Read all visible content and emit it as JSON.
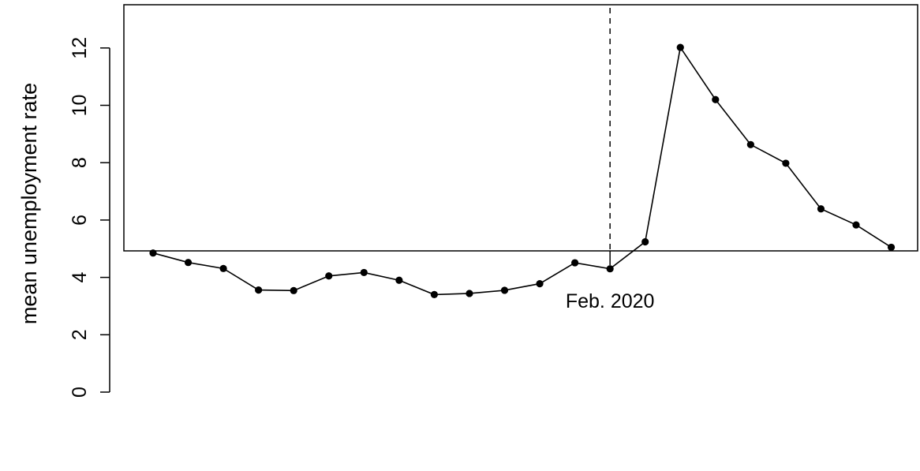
{
  "chart_data": {
    "type": "line",
    "title": "",
    "xlabel": "",
    "ylabel": "mean unemployment rate",
    "ylim": [
      -0.5,
      13.3
    ],
    "yticks": [
      0,
      2,
      4,
      6,
      8,
      10,
      12
    ],
    "x_ticks": [
      {
        "x": 13,
        "label": "Feb. 2020"
      }
    ],
    "reference_line": {
      "x": 13,
      "style": "dashed"
    },
    "grid": false,
    "legend": "none",
    "series": [
      {
        "x": [
          0,
          1,
          2,
          3,
          4,
          5,
          6,
          7,
          8,
          9,
          10,
          11,
          12,
          13,
          14,
          15,
          16,
          17,
          18,
          19,
          20,
          21
        ],
        "values": [
          4.85,
          4.52,
          4.31,
          3.56,
          3.54,
          4.05,
          4.17,
          3.9,
          3.4,
          3.44,
          3.55,
          3.78,
          4.51,
          4.3,
          5.24,
          12.02,
          10.2,
          8.63,
          7.98,
          6.39,
          5.83,
          5.05
        ]
      }
    ]
  },
  "colors": {
    "line": "#000000",
    "axis": "#000000"
  }
}
